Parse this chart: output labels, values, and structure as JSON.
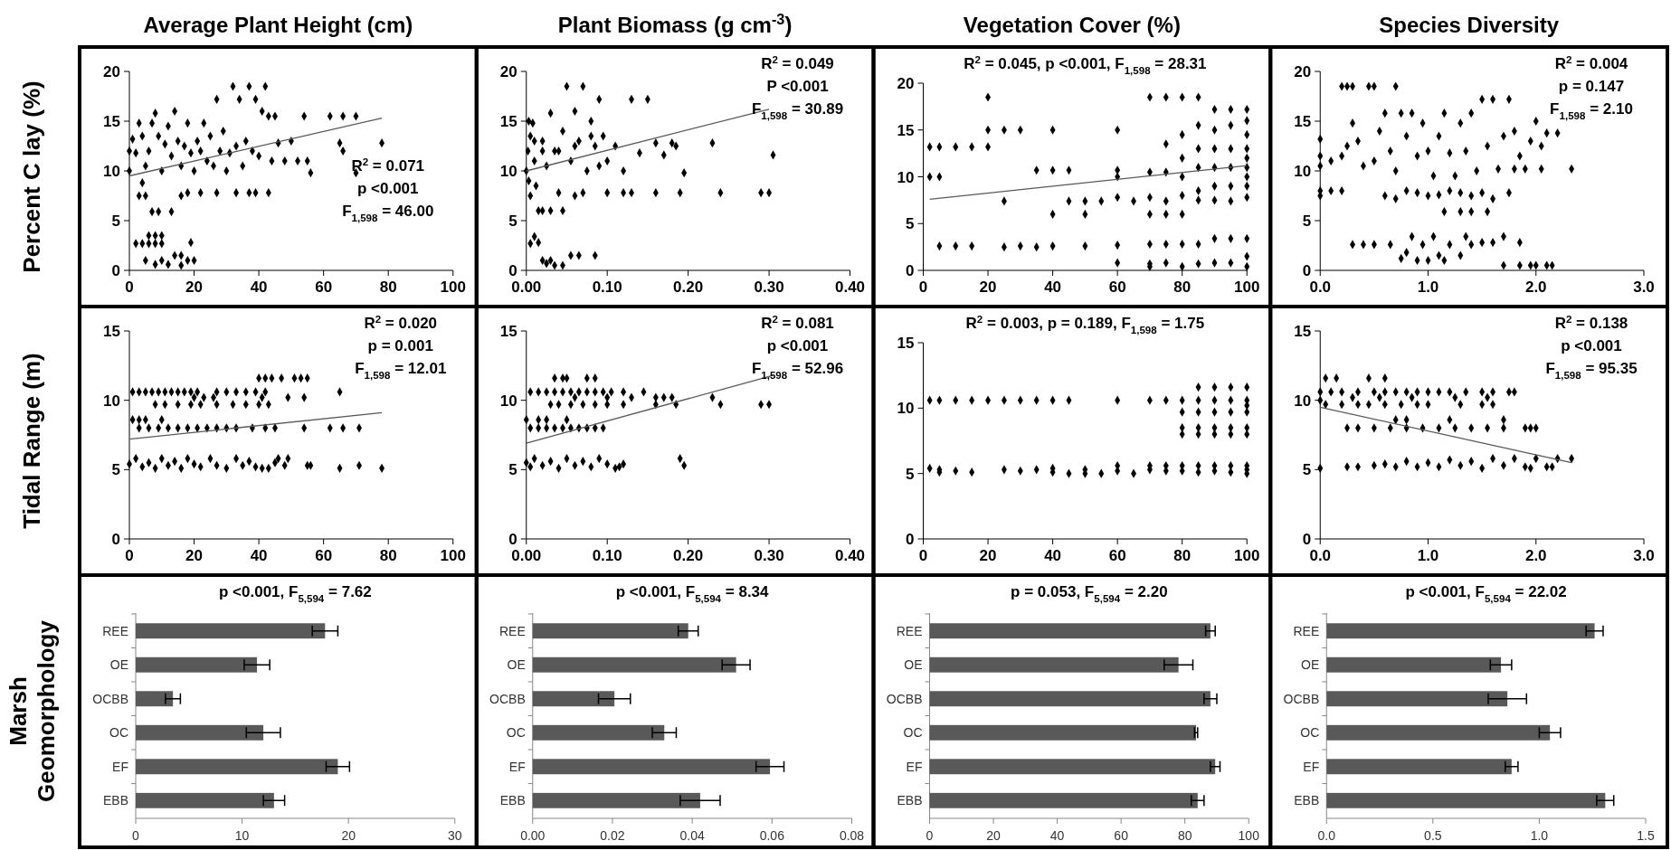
{
  "chart_data": [
    {
      "type": "scatter",
      "title": "Average Plant Height (cm)",
      "ylabel": "Percent C lay (%)",
      "xlim": [
        0,
        100
      ],
      "xticks": [
        0,
        20,
        40,
        60,
        80,
        100
      ],
      "ylim": [
        0,
        20
      ],
      "yticks": [
        0,
        5,
        10,
        15,
        20
      ],
      "annotations": [
        "R$^{2}$ = 0.071",
        "p <0.001",
        "F$_{1,598}$ = 46.00"
      ],
      "series": [
        {
          "marker": "diamond",
          "color": "#000000",
          "x": [
            2,
            4,
            6,
            8,
            10,
            6,
            8,
            10,
            5,
            8,
            10,
            12,
            14,
            16,
            18,
            16,
            20,
            19,
            7,
            9,
            13,
            3,
            5,
            4,
            16,
            18,
            22,
            27,
            33,
            37,
            39,
            43,
            0,
            0,
            1,
            2,
            3,
            4,
            5,
            6,
            7,
            8,
            9,
            10,
            11,
            12,
            13,
            14,
            15,
            16,
            17,
            18,
            19,
            20,
            21,
            22,
            23,
            24,
            25,
            26,
            27,
            28,
            29,
            30,
            31,
            32,
            33,
            34,
            35,
            36,
            37,
            38,
            39,
            40,
            41,
            42,
            43,
            44,
            45,
            46,
            48,
            50,
            52,
            54,
            55,
            56,
            62,
            65,
            66,
            70,
            78,
            66,
            70
          ],
          "values": [
            2.7,
            2.7,
            2.7,
            2.7,
            2.7,
            3.5,
            3.5,
            3.5,
            1,
            0.6,
            1,
            0.6,
            1.5,
            1.5,
            1,
            0.5,
            1,
            2.8,
            5.9,
            5.9,
            5.9,
            7.5,
            7.5,
            8.8,
            7.5,
            7.8,
            7.8,
            7.8,
            7.8,
            7.8,
            7.8,
            7.8,
            10,
            12,
            13.2,
            11.8,
            14.8,
            13.5,
            10.5,
            12,
            14.8,
            15.8,
            13.5,
            10,
            12.7,
            14.5,
            11.5,
            16,
            13,
            10.5,
            12.5,
            14.8,
            11.8,
            10,
            13,
            12,
            14.8,
            11,
            13.5,
            10.5,
            17.2,
            12,
            14,
            10,
            11.8,
            18.5,
            12.5,
            17.2,
            10.5,
            13,
            18.5,
            12,
            17.2,
            11.5,
            16,
            18.5,
            15.5,
            11,
            15.5,
            12.8,
            11,
            13,
            11,
            15.5,
            11,
            9.8,
            15.5,
            12.8,
            12,
            9.8,
            12.8,
            15.5,
            15.5
          ]
        },
        {
          "type": "line",
          "color": "#595959",
          "x": [
            0,
            78
          ],
          "values": [
            9.5,
            15.3
          ]
        }
      ]
    },
    {
      "type": "scatter",
      "title": "Plant Biomass (g cm$^{-3}$)",
      "xlim": [
        0,
        0.4
      ],
      "xticks": [
        {
          "value": 0,
          "label": "0.00"
        },
        {
          "value": 0.1,
          "label": "0.10"
        },
        {
          "value": 0.2,
          "label": "0.20"
        },
        {
          "value": 0.3,
          "label": "0.30"
        },
        {
          "value": 0.4,
          "label": "0.40"
        }
      ],
      "ylim": [
        0,
        20
      ],
      "yticks": [
        0,
        5,
        10,
        15,
        20
      ],
      "annotations": [
        "R$^{2}$ = 0.049",
        "P <0.001",
        "F$_{1,598}$ = 30.89"
      ],
      "series": [
        {
          "marker": "diamond",
          "color": "#000000",
          "x": [
            0,
            0.002,
            0.005,
            0.003,
            0.005,
            0.008,
            0.01,
            0.012,
            0.015,
            0.02,
            0.025,
            0.03,
            0.035,
            0.04,
            0.045,
            0.05,
            0.055,
            0.06,
            0.065,
            0.07,
            0.075,
            0.08,
            0.085,
            0.09,
            0.095,
            0.1,
            0.11,
            0.12,
            0.13,
            0.14,
            0.15,
            0.1,
            0.12,
            0.13,
            0.16,
            0.19,
            0.24,
            0.29,
            0.3,
            0.16,
            0.17,
            0.18,
            0.185,
            0.195,
            0.23,
            0.305,
            0.005,
            0.01,
            0.015,
            0.02,
            0.025,
            0.03,
            0.035,
            0.045,
            0.055,
            0.065,
            0.085,
            0.02,
            0.03,
            0.045,
            0.06,
            0.07,
            0.003,
            0.01,
            0.02,
            0.04,
            0.06,
            0.08,
            0.09
          ],
          "values": [
            10,
            12,
            13.5,
            9,
            7.5,
            14.8,
            11,
            8.5,
            6,
            13,
            10.5,
            15.8,
            12,
            7.8,
            14,
            18.5,
            11,
            16,
            13,
            18.5,
            10,
            15,
            12.5,
            17.2,
            13.5,
            11,
            12.5,
            10,
            17.2,
            11.8,
            17.2,
            7.8,
            7.8,
            7.8,
            7.8,
            7.8,
            7.8,
            7.8,
            7.8,
            12.8,
            11.6,
            12.8,
            12.5,
            9.8,
            12.8,
            11.6,
            2.7,
            3.4,
            2.8,
            1,
            0.7,
            1,
            0.5,
            0.5,
            1.5,
            1.5,
            1.5,
            6,
            6,
            6,
            7.5,
            7.8,
            15,
            13,
            12,
            12,
            12.5,
            13.5,
            10.5
          ]
        },
        {
          "type": "line",
          "color": "#595959",
          "x": [
            0,
            0.3
          ],
          "values": [
            10,
            16.2
          ]
        }
      ]
    },
    {
      "type": "scatter",
      "title": "Vegetation Cover (%)",
      "xlim": [
        0,
        100
      ],
      "xticks": [
        0,
        20,
        40,
        60,
        80,
        100
      ],
      "ylim": [
        0,
        20
      ],
      "yticks": [
        0,
        5,
        10,
        15,
        20
      ],
      "annotations": [
        "R$^{2}$ = 0.045, p <0.001, F$_{1,598}$ = 28.31"
      ],
      "series": [
        {
          "marker": "diamond",
          "color": "#000000",
          "x": [
            2,
            5,
            10,
            15,
            2,
            5,
            20,
            20,
            20,
            25,
            30,
            25,
            35,
            40,
            40,
            40,
            45,
            45,
            50,
            50,
            55,
            60,
            60,
            60,
            60,
            65,
            70,
            70,
            70,
            70,
            75,
            75,
            75,
            75,
            75,
            80,
            80,
            80,
            80,
            80,
            80,
            85,
            85,
            85,
            85,
            85,
            85,
            90,
            90,
            90,
            90,
            90,
            90,
            95,
            95,
            95,
            95,
            95,
            95,
            100,
            100,
            100,
            100,
            100,
            100,
            100,
            100,
            100,
            5,
            10,
            15,
            25,
            30,
            35,
            40,
            50,
            60,
            60,
            70,
            70,
            70,
            75,
            75,
            80,
            80,
            85,
            85,
            90,
            90,
            95,
            95,
            100,
            100,
            100
          ],
          "values": [
            13.2,
            13.2,
            13.2,
            13.2,
            10,
            10,
            18.5,
            15,
            13.2,
            15,
            15,
            7.4,
            10.7,
            10.7,
            15,
            6,
            7.4,
            10.7,
            7.4,
            6,
            7.4,
            15,
            10.7,
            10,
            7.8,
            7.4,
            18.5,
            10.5,
            7.8,
            6,
            18.5,
            13.5,
            10.5,
            7.4,
            6,
            18.5,
            14.5,
            12,
            10,
            8,
            6,
            18.5,
            15.5,
            13,
            11,
            8.5,
            7.5,
            17.2,
            15,
            13,
            11,
            9,
            7.5,
            17.2,
            15.5,
            13,
            11,
            9,
            7.4,
            17.2,
            16,
            14.5,
            13,
            12,
            11,
            10,
            9,
            7.8,
            2.6,
            2.6,
            2.6,
            2.5,
            2.6,
            2.5,
            2.6,
            2.6,
            2.7,
            0.8,
            2.8,
            0.7,
            0.4,
            2.8,
            0.8,
            2.8,
            0.4,
            2.8,
            0.7,
            3.4,
            0.8,
            3.4,
            0.8,
            3.4,
            1.5,
            0.4
          ]
        },
        {
          "type": "line",
          "color": "#595959",
          "x": [
            2,
            100
          ],
          "values": [
            7.6,
            11.2
          ]
        }
      ]
    },
    {
      "type": "scatter",
      "title": "Species Diversity",
      "xlim": [
        0,
        3
      ],
      "xticks": [
        {
          "value": 0,
          "label": "0.0"
        },
        {
          "value": 1,
          "label": "1.0"
        },
        {
          "value": 2,
          "label": "2.0"
        },
        {
          "value": 3,
          "label": "3.0"
        }
      ],
      "ylim": [
        0,
        20
      ],
      "yticks": [
        0,
        5,
        10,
        15,
        20
      ],
      "annotations": [
        "R$^{2}$ = 0.004",
        "p = 0.147",
        "F$_{1,598}$ = 2.10"
      ],
      "series": [
        {
          "marker": "diamond",
          "color": "#000000",
          "x": [
            0,
            0,
            0,
            0,
            0,
            0.1,
            0.1,
            0.2,
            0.25,
            0.3,
            0.45,
            0.5,
            0.7,
            0.2,
            0.2,
            0.25,
            0.3,
            0.35,
            0.4,
            0.5,
            0.55,
            0.6,
            0.65,
            0.7,
            0.75,
            0.8,
            0.85,
            0.9,
            0.95,
            1.0,
            1.05,
            1.1,
            1.15,
            1.2,
            1.25,
            1.3,
            1.35,
            1.4,
            1.45,
            1.5,
            1.55,
            1.6,
            1.65,
            1.7,
            1.75,
            1.8,
            1.85,
            1.9,
            1.95,
            2.0,
            2.05,
            2.1,
            2.2,
            2.33,
            2.05,
            1.8,
            0.6,
            0.7,
            0.8,
            0.9,
            1.0,
            1.1,
            1.2,
            1.3,
            1.4,
            1.5,
            1.6,
            1.75,
            1.15,
            1.3,
            1.4,
            1.55,
            0.3,
            0.4,
            0.5,
            0.65,
            0.75,
            0.8,
            0.85,
            0.9,
            0.95,
            1.0,
            1.05,
            1.1,
            1.15,
            1.2,
            1.3,
            1.35,
            1.4,
            1.5,
            1.6,
            1.7,
            1.85,
            1.7,
            1.85,
            1.95,
            2.0,
            2.1,
            2.15
          ],
          "values": [
            7.5,
            8,
            10.5,
            11.5,
            13.2,
            8,
            11,
            18.5,
            18.5,
            18.5,
            18.5,
            18.5,
            18.5,
            8,
            11.5,
            12.5,
            14.8,
            13,
            10.5,
            11,
            14,
            15.8,
            12,
            10,
            15.8,
            13.5,
            15.8,
            11.5,
            14.8,
            12,
            9.5,
            13.5,
            15.8,
            11.8,
            9.5,
            14.8,
            12,
            15.8,
            10,
            17.2,
            12.5,
            17.2,
            10.2,
            13.5,
            17.2,
            14,
            11.5,
            10.2,
            13,
            15,
            12.5,
            13.8,
            13.8,
            10.2,
            10.2,
            10.2,
            7.5,
            7.2,
            8,
            7.8,
            7.5,
            7.6,
            8,
            7.8,
            7.5,
            7.8,
            7.2,
            7.8,
            5.9,
            5.9,
            5.9,
            5.9,
            2.6,
            2.6,
            2.6,
            2.6,
            1.2,
            1.8,
            3.4,
            1,
            2.6,
            1,
            3.4,
            1.5,
            1,
            2.6,
            1.5,
            3.4,
            2.6,
            2.8,
            2.8,
            3.4,
            2.8,
            0.5,
            0.5,
            0.5,
            0.5,
            0.5,
            0.5
          ]
        }
      ]
    },
    {
      "type": "scatter",
      "ylabel": "Tidal Range (m)",
      "xlim": [
        0,
        100
      ],
      "xticks": [
        0,
        20,
        40,
        60,
        80,
        100
      ],
      "ylim": [
        0,
        15
      ],
      "yticks": [
        0,
        5,
        10,
        15
      ],
      "annotations": [
        "R$^{2}$ = 0.020",
        "p = 0.001",
        "F$_{1,598}$ = 12.01"
      ],
      "series": [
        {
          "marker": "diamond",
          "color": "#000000",
          "x": [
            1,
            3,
            5,
            7,
            9,
            11,
            13,
            15,
            17,
            19,
            21,
            27,
            30,
            33,
            36,
            39,
            42,
            65,
            40,
            42,
            44,
            47,
            51,
            53,
            55,
            20,
            23,
            26,
            41,
            49,
            54,
            8,
            11,
            15,
            19,
            22,
            27,
            32,
            36,
            40,
            43,
            1,
            3,
            5,
            10,
            3,
            6,
            9,
            12,
            15,
            18,
            21,
            24,
            27,
            30,
            33,
            38,
            42,
            45,
            54,
            62,
            66,
            71,
            0,
            2,
            4,
            6,
            8,
            10,
            12,
            14,
            16,
            18,
            20,
            22,
            25,
            27,
            30,
            33,
            35,
            37,
            39,
            41,
            43,
            46,
            48,
            49,
            55,
            56,
            65,
            71,
            78,
            45
          ],
          "values": [
            10.6,
            10.6,
            10.6,
            10.6,
            10.6,
            10.6,
            10.6,
            10.6,
            10.6,
            10.6,
            10.6,
            10.6,
            10.6,
            10.6,
            10.6,
            10.6,
            10.6,
            10.6,
            11.6,
            11.6,
            11.6,
            11.6,
            11.6,
            11.6,
            11.6,
            10.2,
            10.2,
            10.2,
            10.2,
            10.2,
            10.2,
            9.7,
            9.7,
            9.7,
            9.7,
            9.7,
            9.7,
            9.7,
            9.7,
            9.7,
            9.7,
            8.6,
            8.6,
            8.6,
            8.6,
            8,
            8,
            8,
            8,
            8,
            8,
            8,
            8,
            8,
            8,
            8,
            8,
            8,
            8,
            8,
            8,
            8,
            8,
            5.4,
            5.8,
            5.2,
            5.5,
            5.1,
            5.8,
            5.3,
            5.6,
            5.1,
            5.8,
            5.4,
            5.2,
            5.8,
            5.3,
            5.1,
            5.8,
            5.3,
            5.6,
            5.2,
            5.1,
            5.1,
            5.8,
            5.3,
            5.8,
            5.3,
            5.3,
            5.1,
            5.3,
            5.1,
            5.5
          ]
        },
        {
          "type": "line",
          "color": "#595959",
          "x": [
            0,
            78
          ],
          "values": [
            7.2,
            9.1
          ]
        }
      ]
    },
    {
      "type": "scatter",
      "xlim": [
        0,
        0.4
      ],
      "xticks": [
        {
          "value": 0,
          "label": "0.00"
        },
        {
          "value": 0.1,
          "label": "0.10"
        },
        {
          "value": 0.2,
          "label": "0.20"
        },
        {
          "value": 0.3,
          "label": "0.30"
        },
        {
          "value": 0.4,
          "label": "0.40"
        }
      ],
      "ylim": [
        0,
        15
      ],
      "yticks": [
        0,
        5,
        10,
        15
      ],
      "annotations": [
        "R$^{2}$ = 0.081",
        "p <0.001",
        "F$_{1,598}$ = 52.96"
      ],
      "series": [
        {
          "marker": "diamond",
          "color": "#000000",
          "x": [
            0.005,
            0.015,
            0.025,
            0.035,
            0.045,
            0.055,
            0.065,
            0.075,
            0.085,
            0.095,
            0.105,
            0.12,
            0.145,
            0.035,
            0.045,
            0.05,
            0.075,
            0.085,
            0.06,
            0.1,
            0.13,
            0.16,
            0.17,
            0.18,
            0.23,
            0.03,
            0.04,
            0.055,
            0.07,
            0.085,
            0.1,
            0.12,
            0.16,
            0.185,
            0.24,
            0.29,
            0.3,
            0,
            0.015,
            0.025,
            0.05,
            0.005,
            0.015,
            0.025,
            0.035,
            0.045,
            0.055,
            0.065,
            0.075,
            0.085,
            0.095,
            0,
            0.005,
            0.01,
            0.02,
            0.03,
            0.04,
            0.05,
            0.06,
            0.07,
            0.08,
            0.09,
            0.1,
            0.11,
            0.12,
            0.115,
            0.19,
            0.195
          ],
          "values": [
            10.6,
            10.6,
            10.6,
            10.6,
            10.6,
            10.6,
            10.6,
            10.6,
            10.6,
            10.6,
            10.6,
            10.6,
            10.6,
            11.6,
            11.6,
            11.6,
            11.6,
            11.6,
            10.2,
            10.2,
            10.2,
            10.2,
            10.2,
            10.2,
            10.2,
            9.7,
            9.7,
            9.7,
            9.7,
            9.7,
            9.7,
            9.7,
            9.7,
            9.7,
            9.7,
            9.7,
            9.7,
            8.6,
            8.6,
            8.6,
            8.6,
            8,
            8,
            8,
            8,
            8,
            8,
            8,
            8,
            8,
            8,
            5.5,
            5.2,
            5.8,
            5.3,
            5.6,
            5.1,
            5.8,
            5.3,
            5.6,
            5.2,
            5.8,
            5.4,
            5.1,
            5.4,
            5.2,
            5.8,
            5.3
          ]
        },
        {
          "type": "line",
          "color": "#595959",
          "x": [
            0,
            0.305
          ],
          "values": [
            6.9,
            11.8
          ]
        }
      ]
    },
    {
      "type": "scatter",
      "xlim": [
        0,
        100
      ],
      "xticks": [
        0,
        20,
        40,
        60,
        80,
        100
      ],
      "ylim": [
        0,
        15
      ],
      "yticks": [
        0,
        5,
        10,
        15
      ],
      "annotations": [
        "R$^{2}$ = 0.003, p = 0.189, F$_{1,598}$ = 1.75"
      ],
      "series": [
        {
          "marker": "diamond",
          "color": "#000000",
          "x": [
            2,
            5,
            10,
            15,
            20,
            25,
            30,
            35,
            40,
            45,
            60,
            70,
            75,
            80,
            85,
            90,
            95,
            100,
            85,
            90,
            95,
            100,
            100,
            80,
            85,
            90,
            95,
            100,
            80,
            85,
            90,
            95,
            100,
            80,
            85,
            90,
            95,
            100,
            2,
            5,
            5,
            10,
            15,
            25,
            30,
            35,
            40,
            40,
            45,
            50,
            50,
            55,
            60,
            60,
            65,
            70,
            70,
            75,
            75,
            80,
            80,
            85,
            85,
            90,
            90,
            95,
            95,
            100,
            100,
            100
          ],
          "values": [
            10.6,
            10.6,
            10.6,
            10.6,
            10.6,
            10.6,
            10.6,
            10.6,
            10.6,
            10.6,
            10.6,
            10.6,
            10.6,
            10.6,
            10.6,
            10.6,
            10.6,
            10.6,
            11.6,
            11.6,
            11.6,
            11.6,
            10.2,
            9.7,
            9.7,
            9.7,
            9.7,
            9.7,
            8.5,
            8.5,
            8.5,
            8.5,
            8.5,
            8,
            8,
            8,
            8,
            8,
            5.4,
            5.3,
            5.1,
            5.2,
            5.1,
            5.3,
            5.2,
            5.3,
            5.4,
            5.1,
            5.0,
            5.3,
            5.0,
            5.0,
            5.6,
            5.2,
            5.0,
            5.6,
            5.3,
            5.6,
            5.2,
            5.6,
            5.2,
            5.6,
            5.1,
            5.6,
            5.2,
            5.6,
            5.1,
            5.6,
            5.3,
            5.0
          ]
        }
      ]
    },
    {
      "type": "scatter",
      "xlim": [
        0,
        3
      ],
      "xticks": [
        {
          "value": 0,
          "label": "0.0"
        },
        {
          "value": 1,
          "label": "1.0"
        },
        {
          "value": 2,
          "label": "2.0"
        },
        {
          "value": 3,
          "label": "3.0"
        }
      ],
      "ylim": [
        0,
        15
      ],
      "yticks": [
        0,
        5,
        10,
        15
      ],
      "annotations": [
        "R$^{2}$ = 0.138",
        "p <0.001",
        "F$_{1,598}$ = 95.35"
      ],
      "series": [
        {
          "marker": "diamond",
          "color": "#000000",
          "x": [
            0,
            0,
            0,
            0.05,
            0.15,
            0.45,
            0.6,
            0.1,
            0.2,
            0.35,
            0.5,
            0.6,
            0.7,
            0.8,
            0.9,
            1.0,
            1.1,
            1.2,
            1.35,
            1.5,
            1.6,
            1.75,
            1.8,
            0.05,
            0.2,
            0.35,
            0.45,
            0.6,
            0.75,
            0.9,
            1.0,
            1.3,
            1.5,
            1.6,
            0.3,
            0.55,
            0.85,
            1.25,
            1.55,
            0.7,
            0.8,
            1.2,
            1.7,
            0.25,
            0.35,
            0.5,
            0.65,
            0.8,
            0.95,
            1.1,
            1.25,
            1.4,
            1.55,
            1.7,
            1.9,
            1.95,
            2.0,
            0.25,
            0.35,
            0.5,
            0.6,
            0.7,
            0.8,
            0.9,
            1.0,
            1.1,
            1.2,
            1.3,
            1.4,
            1.5,
            1.6,
            1.7,
            1.8,
            1.9,
            2.0,
            2.1,
            2.2,
            2.33,
            1.95,
            2.15
          ],
          "values": [
            5.1,
            10.6,
            10,
            11.6,
            11.6,
            11.6,
            11.6,
            10.6,
            10.6,
            10.6,
            10.6,
            10.6,
            10.6,
            10.6,
            10.6,
            10.6,
            10.6,
            10.6,
            10.6,
            10.6,
            10.6,
            10.6,
            10.6,
            9.7,
            9.7,
            9.7,
            9.7,
            9.7,
            9.7,
            9.7,
            9.7,
            9.7,
            9.7,
            9.7,
            10.2,
            10.2,
            10.2,
            10.2,
            10.2,
            8.6,
            8.6,
            8.6,
            8.6,
            8,
            8,
            8,
            8,
            8,
            8,
            8,
            8,
            8,
            8,
            8,
            8,
            8,
            8,
            5.2,
            5.2,
            5.3,
            5.4,
            5.2,
            5.6,
            5.2,
            5.5,
            5.2,
            5.7,
            5.3,
            5.6,
            5.1,
            5.8,
            5.3,
            5.8,
            5.2,
            5.8,
            5.2,
            5.8,
            5.8,
            5.1,
            5.2
          ]
        },
        {
          "type": "line",
          "color": "#595959",
          "x": [
            0,
            2.33
          ],
          "values": [
            9.5,
            5.5
          ]
        }
      ]
    },
    {
      "type": "bar",
      "orientation": "horizontal",
      "ylabel": "Marsh Geomorphology",
      "categories": [
        "REE",
        "OE",
        "OCBB",
        "OC",
        "EF",
        "EBB"
      ],
      "values": [
        17.8,
        11.4,
        3.5,
        12.0,
        19.0,
        13.0
      ],
      "errors": [
        1.2,
        1.2,
        0.7,
        1.6,
        1.1,
        1.0
      ],
      "color": "#595959",
      "xlim": [
        0,
        30
      ],
      "xticks": [
        0,
        10,
        20,
        30
      ],
      "annotations": [
        "p <0.001, F$_{5,594}$ = 7.62"
      ]
    },
    {
      "type": "bar",
      "orientation": "horizontal",
      "categories": [
        "REE",
        "OE",
        "OCBB",
        "OC",
        "EF",
        "EBB"
      ],
      "values": [
        0.039,
        0.051,
        0.0205,
        0.033,
        0.0595,
        0.042
      ],
      "errors": [
        0.0025,
        0.0035,
        0.004,
        0.003,
        0.0035,
        0.005
      ],
      "color": "#595959",
      "xlim": [
        0,
        0.08
      ],
      "xticks": [
        {
          "value": 0,
          "label": "0.00"
        },
        {
          "value": 0.02,
          "label": "0.02"
        },
        {
          "value": 0.04,
          "label": "0.04"
        },
        {
          "value": 0.06,
          "label": "0.06"
        },
        {
          "value": 0.08,
          "label": "0.08"
        }
      ],
      "annotations": [
        "p <0.001, F$_{5,594}$ = 8.34"
      ]
    },
    {
      "type": "bar",
      "orientation": "horizontal",
      "categories": [
        "REE",
        "OE",
        "OCBB",
        "OC",
        "EF",
        "EBB"
      ],
      "values": [
        88,
        78,
        88,
        83.5,
        89.5,
        84
      ],
      "errors": [
        1.5,
        4.5,
        2,
        0.5,
        1.5,
        2
      ],
      "color": "#595959",
      "xlim": [
        0,
        100
      ],
      "xticks": [
        0,
        20,
        40,
        60,
        80,
        100
      ],
      "annotations": [
        "p = 0.053, F$_{5,594}$ = 2.20"
      ]
    },
    {
      "type": "bar",
      "orientation": "horizontal",
      "categories": [
        "REE",
        "OE",
        "OCBB",
        "OC",
        "EF",
        "EBB"
      ],
      "values": [
        1.26,
        0.82,
        0.85,
        1.05,
        0.87,
        1.31
      ],
      "errors": [
        0.04,
        0.05,
        0.09,
        0.05,
        0.03,
        0.04
      ],
      "color": "#595959",
      "xlim": [
        0,
        1.5
      ],
      "xticks": [
        {
          "value": 0,
          "label": "0.0"
        },
        {
          "value": 0.5,
          "label": "0.5"
        },
        {
          "value": 1,
          "label": "1.0"
        },
        {
          "value": 1.5,
          "label": "1.5"
        }
      ],
      "annotations": [
        "p <0.001, F$_{5,594}$ = 22.02"
      ]
    }
  ]
}
